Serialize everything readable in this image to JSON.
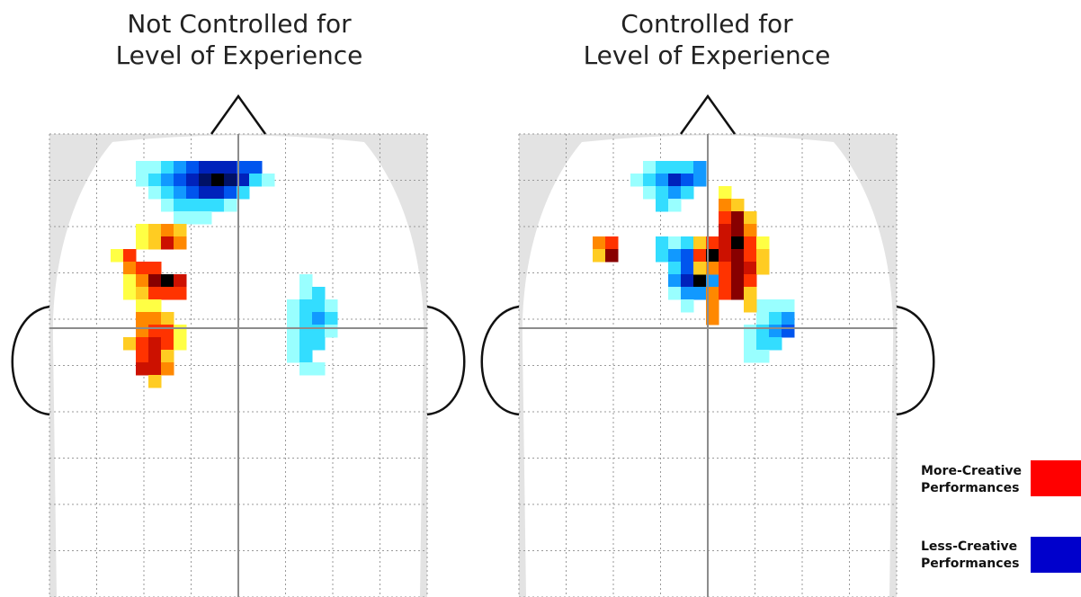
{
  "panels": {
    "left": {
      "title_line1": "Not Controlled for",
      "title_line2": "Level of Experience"
    },
    "right": {
      "title_line1": "Controlled for",
      "title_line2": "Level of Experience"
    }
  },
  "legend": {
    "more_line1": "More-Creative",
    "more_line2": "Performances",
    "more_color": "#ff0000",
    "less_line1": "Less-Creative",
    "less_line2": "Performances",
    "less_color": "#0000cc"
  },
  "palette": {
    "more": [
      "#ffff44",
      "#ffcc22",
      "#ff8800",
      "#ff3300",
      "#cc1100",
      "#880000",
      "#000000"
    ],
    "less": [
      "#99ffff",
      "#33ddff",
      "#1199ff",
      "#0055ee",
      "#0022bb",
      "#001166",
      "#000000"
    ]
  },
  "activation_maps": {
    "left": {
      "less": [
        [
          6,
          1,
          0
        ],
        [
          7,
          1,
          0
        ],
        [
          8,
          1,
          1
        ],
        [
          9,
          1,
          2
        ],
        [
          10,
          1,
          3
        ],
        [
          11,
          1,
          4
        ],
        [
          12,
          1,
          4
        ],
        [
          13,
          1,
          4
        ],
        [
          14,
          1,
          3
        ],
        [
          15,
          1,
          3
        ],
        [
          6,
          2,
          0
        ],
        [
          7,
          2,
          1
        ],
        [
          8,
          2,
          2
        ],
        [
          9,
          2,
          3
        ],
        [
          10,
          2,
          4
        ],
        [
          11,
          2,
          5
        ],
        [
          12,
          2,
          6
        ],
        [
          13,
          2,
          5
        ],
        [
          14,
          2,
          4
        ],
        [
          15,
          2,
          1
        ],
        [
          16,
          2,
          0
        ],
        [
          7,
          3,
          0
        ],
        [
          8,
          3,
          1
        ],
        [
          9,
          3,
          2
        ],
        [
          10,
          3,
          3
        ],
        [
          11,
          3,
          4
        ],
        [
          12,
          3,
          4
        ],
        [
          13,
          3,
          3
        ],
        [
          14,
          3,
          1
        ],
        [
          8,
          4,
          0
        ],
        [
          9,
          4,
          1
        ],
        [
          10,
          4,
          1
        ],
        [
          11,
          4,
          1
        ],
        [
          12,
          4,
          1
        ],
        [
          13,
          4,
          0
        ],
        [
          9,
          5,
          0
        ],
        [
          10,
          5,
          0
        ],
        [
          11,
          5,
          0
        ],
        [
          19,
          10,
          0
        ],
        [
          19,
          11,
          0
        ],
        [
          20,
          11,
          1
        ],
        [
          18,
          12,
          0
        ],
        [
          19,
          12,
          1
        ],
        [
          20,
          12,
          1
        ],
        [
          21,
          12,
          0
        ],
        [
          18,
          13,
          0
        ],
        [
          19,
          13,
          1
        ],
        [
          20,
          13,
          2
        ],
        [
          21,
          13,
          1
        ],
        [
          18,
          14,
          0
        ],
        [
          19,
          14,
          1
        ],
        [
          20,
          14,
          1
        ],
        [
          21,
          14,
          0
        ],
        [
          18,
          15,
          0
        ],
        [
          19,
          15,
          1
        ],
        [
          20,
          15,
          1
        ],
        [
          18,
          16,
          0
        ],
        [
          19,
          16,
          1
        ],
        [
          19,
          17,
          0
        ],
        [
          20,
          17,
          0
        ]
      ],
      "more": [
        [
          6,
          6,
          0
        ],
        [
          7,
          6,
          1
        ],
        [
          8,
          6,
          2
        ],
        [
          9,
          6,
          1
        ],
        [
          6,
          7,
          0
        ],
        [
          7,
          7,
          1
        ],
        [
          8,
          7,
          4
        ],
        [
          9,
          7,
          2
        ],
        [
          4,
          8,
          0
        ],
        [
          5,
          8,
          3
        ],
        [
          5,
          9,
          2
        ],
        [
          6,
          9,
          3
        ],
        [
          7,
          9,
          3
        ],
        [
          5,
          10,
          0
        ],
        [
          6,
          10,
          2
        ],
        [
          7,
          10,
          5
        ],
        [
          8,
          10,
          6
        ],
        [
          9,
          10,
          4
        ],
        [
          5,
          11,
          0
        ],
        [
          6,
          11,
          1
        ],
        [
          7,
          11,
          3
        ],
        [
          8,
          11,
          3
        ],
        [
          9,
          11,
          3
        ],
        [
          6,
          12,
          0
        ],
        [
          7,
          12,
          0
        ],
        [
          6,
          13,
          2
        ],
        [
          7,
          13,
          2
        ],
        [
          8,
          13,
          1
        ],
        [
          6,
          14,
          2
        ],
        [
          7,
          14,
          3
        ],
        [
          8,
          14,
          3
        ],
        [
          9,
          14,
          0
        ],
        [
          5,
          15,
          1
        ],
        [
          6,
          15,
          3
        ],
        [
          7,
          15,
          4
        ],
        [
          8,
          15,
          3
        ],
        [
          9,
          15,
          0
        ],
        [
          6,
          16,
          3
        ],
        [
          7,
          16,
          4
        ],
        [
          8,
          16,
          1
        ],
        [
          6,
          17,
          4
        ],
        [
          7,
          17,
          4
        ],
        [
          8,
          17,
          2
        ],
        [
          7,
          18,
          1
        ]
      ]
    },
    "right": {
      "less": [
        [
          9,
          1,
          0
        ],
        [
          10,
          1,
          1
        ],
        [
          11,
          1,
          1
        ],
        [
          12,
          1,
          1
        ],
        [
          13,
          1,
          2
        ],
        [
          8,
          2,
          0
        ],
        [
          9,
          2,
          1
        ],
        [
          10,
          2,
          2
        ],
        [
          11,
          2,
          4
        ],
        [
          12,
          2,
          3
        ],
        [
          13,
          2,
          2
        ],
        [
          9,
          3,
          0
        ],
        [
          10,
          3,
          1
        ],
        [
          11,
          3,
          2
        ],
        [
          12,
          3,
          1
        ],
        [
          10,
          4,
          1
        ],
        [
          11,
          4,
          0
        ],
        [
          10,
          7,
          1
        ],
        [
          11,
          7,
          0
        ],
        [
          12,
          7,
          1
        ],
        [
          10,
          8,
          1
        ],
        [
          11,
          8,
          2
        ],
        [
          12,
          8,
          3
        ],
        [
          13,
          8,
          2
        ],
        [
          11,
          9,
          1
        ],
        [
          12,
          9,
          3
        ],
        [
          13,
          9,
          5
        ],
        [
          14,
          9,
          1
        ],
        [
          11,
          10,
          2
        ],
        [
          12,
          10,
          4
        ],
        [
          13,
          10,
          6
        ],
        [
          14,
          10,
          2
        ],
        [
          11,
          11,
          0
        ],
        [
          12,
          11,
          2
        ],
        [
          13,
          11,
          2
        ],
        [
          12,
          12,
          0
        ],
        [
          18,
          12,
          0
        ],
        [
          19,
          12,
          0
        ],
        [
          20,
          12,
          0
        ],
        [
          18,
          13,
          0
        ],
        [
          19,
          13,
          1
        ],
        [
          20,
          13,
          2
        ],
        [
          17,
          14,
          0
        ],
        [
          18,
          14,
          1
        ],
        [
          19,
          14,
          2
        ],
        [
          20,
          14,
          3
        ],
        [
          17,
          15,
          0
        ],
        [
          18,
          15,
          1
        ],
        [
          19,
          15,
          1
        ],
        [
          17,
          16,
          0
        ],
        [
          18,
          16,
          0
        ]
      ],
      "more": [
        [
          15,
          3,
          0
        ],
        [
          15,
          4,
          2
        ],
        [
          16,
          4,
          1
        ],
        [
          15,
          5,
          3
        ],
        [
          16,
          5,
          5
        ],
        [
          17,
          5,
          1
        ],
        [
          15,
          6,
          4
        ],
        [
          16,
          6,
          5
        ],
        [
          17,
          6,
          2
        ],
        [
          13,
          7,
          1
        ],
        [
          14,
          7,
          3
        ],
        [
          15,
          7,
          4
        ],
        [
          16,
          7,
          6
        ],
        [
          17,
          7,
          3
        ],
        [
          18,
          7,
          0
        ],
        [
          5,
          7,
          2
        ],
        [
          6,
          7,
          3
        ],
        [
          5,
          8,
          1
        ],
        [
          6,
          8,
          5
        ],
        [
          13,
          8,
          3
        ],
        [
          14,
          8,
          6
        ],
        [
          15,
          8,
          4
        ],
        [
          16,
          8,
          5
        ],
        [
          17,
          8,
          3
        ],
        [
          18,
          8,
          1
        ],
        [
          13,
          9,
          1
        ],
        [
          14,
          9,
          2
        ],
        [
          15,
          9,
          3
        ],
        [
          16,
          9,
          5
        ],
        [
          17,
          9,
          4
        ],
        [
          18,
          9,
          1
        ],
        [
          15,
          10,
          3
        ],
        [
          16,
          10,
          5
        ],
        [
          17,
          10,
          3
        ],
        [
          14,
          11,
          2
        ],
        [
          15,
          11,
          3
        ],
        [
          16,
          11,
          5
        ],
        [
          17,
          11,
          1
        ],
        [
          14,
          12,
          2
        ],
        [
          17,
          12,
          1
        ],
        [
          14,
          13,
          2
        ]
      ]
    }
  }
}
